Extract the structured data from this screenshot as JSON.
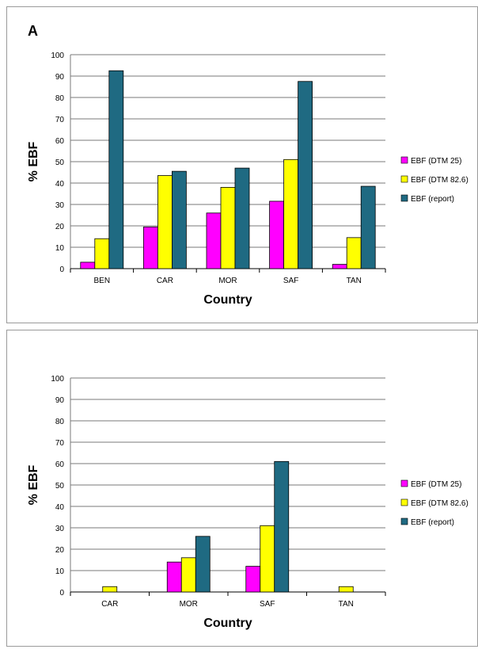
{
  "chart_data": [
    {
      "type": "bar",
      "panel_label": "A",
      "categories": [
        "BEN",
        "CAR",
        "MOR",
        "SAF",
        "TAN"
      ],
      "series": [
        {
          "name": "EBF (DTM 25)",
          "color": "#ff00ff",
          "values": [
            3,
            19.5,
            26,
            31.5,
            2
          ]
        },
        {
          "name": "EBF (DTM 82.6)",
          "color": "#ffff00",
          "values": [
            14,
            43.5,
            38,
            51,
            14.5
          ]
        },
        {
          "name": "EBF (report)",
          "color": "#1f6a82",
          "values": [
            92.5,
            45.5,
            47,
            87.5,
            38.5
          ]
        }
      ],
      "xlabel": "Country",
      "ylabel": "% EBF",
      "ylim": [
        0,
        100
      ],
      "yticks": [
        0,
        10,
        20,
        30,
        40,
        50,
        60,
        70,
        80,
        90,
        100
      ],
      "grid": true,
      "legend": "right"
    },
    {
      "type": "bar",
      "panel_label": "",
      "categories": [
        "CAR",
        "MOR",
        "SAF",
        "TAN"
      ],
      "series": [
        {
          "name": "EBF (DTM 25)",
          "color": "#ff00ff",
          "values": [
            0,
            14,
            12,
            0
          ]
        },
        {
          "name": "EBF (DTM 82.6)",
          "color": "#ffff00",
          "values": [
            2.5,
            16,
            31,
            2.5
          ]
        },
        {
          "name": "EBF (report)",
          "color": "#1f6a82",
          "values": [
            0,
            26,
            61,
            0
          ]
        }
      ],
      "xlabel": "Country",
      "ylabel": "% EBF",
      "ylim": [
        0,
        100
      ],
      "yticks": [
        0,
        10,
        20,
        30,
        40,
        50,
        60,
        70,
        80,
        90,
        100
      ],
      "grid": true,
      "legend": "right"
    }
  ]
}
